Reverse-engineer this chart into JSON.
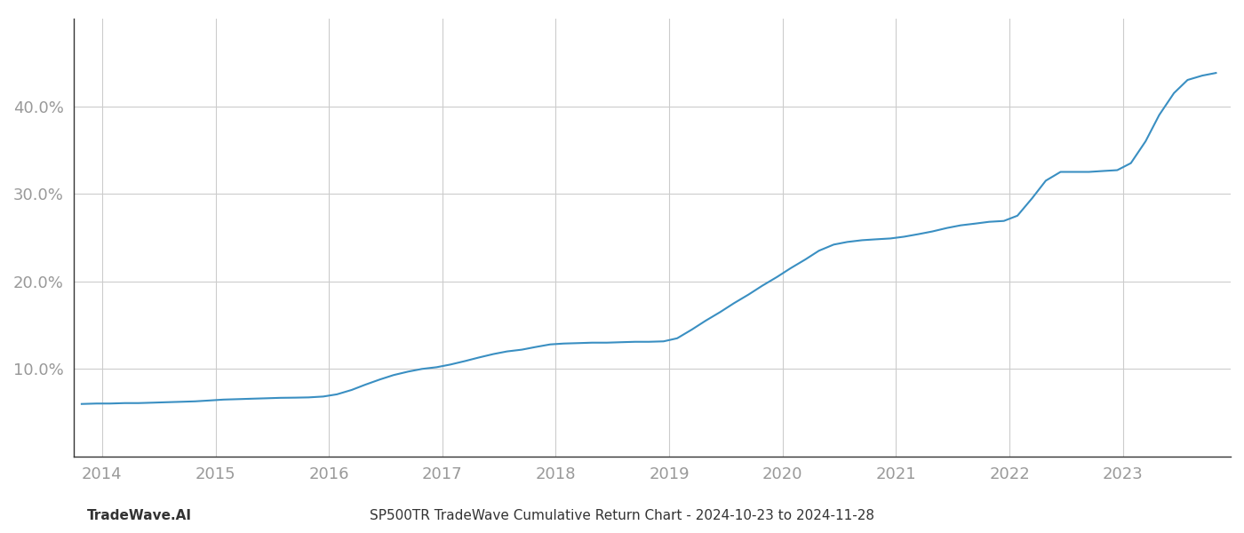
{
  "title": "SP500TR TradeWave Cumulative Return Chart - 2024-10-23 to 2024-11-28",
  "watermark": "TradeWave.AI",
  "line_color": "#3a8fc2",
  "background_color": "#ffffff",
  "grid_color": "#cccccc",
  "x_years": [
    2014,
    2015,
    2016,
    2017,
    2018,
    2019,
    2020,
    2021,
    2022,
    2023
  ],
  "x_values": [
    2013.82,
    2013.95,
    2014.07,
    2014.2,
    2014.32,
    2014.45,
    2014.57,
    2014.7,
    2014.82,
    2014.95,
    2015.07,
    2015.2,
    2015.32,
    2015.45,
    2015.57,
    2015.7,
    2015.82,
    2015.95,
    2016.07,
    2016.2,
    2016.32,
    2016.45,
    2016.57,
    2016.7,
    2016.82,
    2016.95,
    2017.07,
    2017.2,
    2017.32,
    2017.45,
    2017.57,
    2017.7,
    2017.82,
    2017.95,
    2018.07,
    2018.2,
    2018.32,
    2018.45,
    2018.57,
    2018.7,
    2018.82,
    2018.95,
    2019.07,
    2019.2,
    2019.32,
    2019.45,
    2019.57,
    2019.7,
    2019.82,
    2019.95,
    2020.07,
    2020.2,
    2020.32,
    2020.45,
    2020.57,
    2020.7,
    2020.82,
    2020.95,
    2021.07,
    2021.2,
    2021.32,
    2021.45,
    2021.57,
    2021.7,
    2021.82,
    2021.95,
    2022.07,
    2022.2,
    2022.32,
    2022.45,
    2022.57,
    2022.7,
    2022.82,
    2022.95,
    2023.07,
    2023.2,
    2023.32,
    2023.45,
    2023.57,
    2023.7,
    2023.82
  ],
  "y_values": [
    6.0,
    6.05,
    6.05,
    6.1,
    6.1,
    6.15,
    6.2,
    6.25,
    6.3,
    6.4,
    6.5,
    6.55,
    6.6,
    6.65,
    6.7,
    6.72,
    6.75,
    6.85,
    7.1,
    7.6,
    8.2,
    8.8,
    9.3,
    9.7,
    10.0,
    10.2,
    10.5,
    10.9,
    11.3,
    11.7,
    12.0,
    12.2,
    12.5,
    12.8,
    12.9,
    12.95,
    13.0,
    13.0,
    13.05,
    13.1,
    13.1,
    13.15,
    13.5,
    14.5,
    15.5,
    16.5,
    17.5,
    18.5,
    19.5,
    20.5,
    21.5,
    22.5,
    23.5,
    24.2,
    24.5,
    24.7,
    24.8,
    24.9,
    25.1,
    25.4,
    25.7,
    26.1,
    26.4,
    26.6,
    26.8,
    26.9,
    27.5,
    29.5,
    31.5,
    32.5,
    32.5,
    32.5,
    32.6,
    32.7,
    33.5,
    36.0,
    39.0,
    41.5,
    43.0,
    43.5,
    43.8
  ],
  "xlim_min": 2013.75,
  "xlim_max": 2023.95,
  "ylim": [
    0,
    50
  ],
  "yticks": [
    10.0,
    20.0,
    30.0,
    40.0
  ],
  "ytick_labels": [
    "10.0%",
    "20.0%",
    "30.0%",
    "40.0%"
  ],
  "line_width": 1.5,
  "title_fontsize": 11,
  "watermark_fontsize": 11,
  "tick_fontsize": 13,
  "tick_color": "#999999",
  "spine_color": "#333333"
}
